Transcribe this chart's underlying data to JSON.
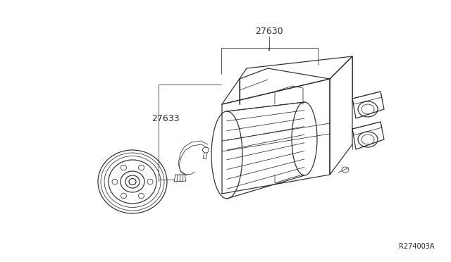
{
  "background_color": "#ffffff",
  "line_color": "#2a2a2a",
  "text_color": "#2a2a2a",
  "part_27630": "27630",
  "part_27633": "27633",
  "ref_code": "R274003A",
  "fig_width": 6.4,
  "fig_height": 3.72,
  "dpi": 100,
  "lw_main": 0.85,
  "lw_thin": 0.55
}
